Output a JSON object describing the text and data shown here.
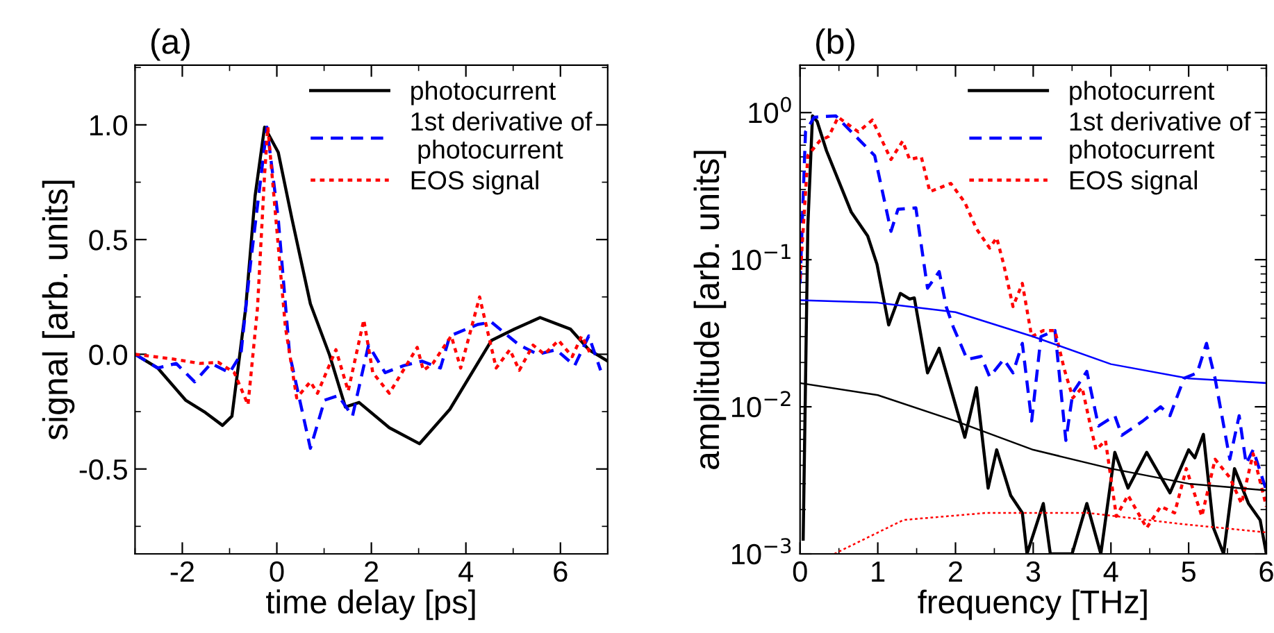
{
  "chart_data": [
    {
      "type": "line",
      "title": "(a)",
      "xlabel": "time delay [ps]",
      "ylabel": "signal [arb. units]",
      "xlim": [
        -3,
        7
      ],
      "ylim": [
        -0.87,
        1.26
      ],
      "xticks": [
        -2,
        0,
        2,
        4,
        6
      ],
      "yticks": [
        {
          "value": -0.5,
          "label": "-0.5"
        },
        {
          "value": 0.0,
          "label": "0.0"
        },
        {
          "value": 0.5,
          "label": "0.5"
        },
        {
          "value": 1.0,
          "label": "1.0"
        }
      ],
      "legend": "top right",
      "series": [
        {
          "name": "photocurrent",
          "color": "#000000",
          "line_style": "solid",
          "x": [
            -3,
            -2.52,
            -1.93,
            -1.54,
            -1.15,
            -0.95,
            -0.66,
            -0.46,
            -0.26,
            0.03,
            0.32,
            0.71,
            1.11,
            1.45,
            1.74,
            2.38,
            3.02,
            3.66,
            4.54,
            5.03,
            5.57,
            6.21,
            6.6,
            7
          ],
          "values": [
            0,
            -0.06,
            -0.2,
            -0.25,
            -0.31,
            -0.27,
            0.2,
            0.69,
            0.99,
            0.88,
            0.59,
            0.22,
            0,
            -0.23,
            -0.21,
            -0.32,
            -0.39,
            -0.24,
            0.06,
            0.11,
            0.16,
            0.11,
            0.02,
            -0.03
          ]
        },
        {
          "name": "1st derivative of\n photocurrent",
          "color": "#0000ff",
          "line_style": "dashed",
          "x": [
            -3,
            -2.52,
            -2.13,
            -1.74,
            -1.39,
            -1.0,
            -0.76,
            -0.56,
            -0.21,
            0.03,
            0.27,
            0.71,
            1.01,
            1.3,
            1.6,
            1.94,
            2.29,
            2.68,
            3.07,
            3.46,
            3.66,
            4.25,
            4.54,
            5.13,
            5.52,
            5.91,
            6.3,
            6.6,
            6.85
          ],
          "values": [
            0,
            -0.06,
            -0.04,
            -0.12,
            -0.04,
            -0.08,
            0,
            0.39,
            0.99,
            0.59,
            0,
            -0.41,
            -0.2,
            -0.18,
            -0.27,
            0.04,
            -0.08,
            -0.05,
            -0.03,
            -0.06,
            0.08,
            0.13,
            0.14,
            0.04,
            0,
            0.02,
            -0.05,
            0.08,
            -0.07
          ]
        },
        {
          "name": "EOS signal",
          "color": "#ff0000",
          "line_style": "dotted",
          "x": [
            -3,
            -2.22,
            -1.63,
            -1.24,
            -0.9,
            -0.61,
            -0.41,
            -0.26,
            -0.19,
            -0.02,
            0.18,
            0.42,
            0.71,
            0.86,
            1.25,
            1.51,
            1.84,
            2.03,
            2.38,
            2.97,
            3.1,
            3.3,
            3.69,
            3.89,
            4.29,
            4.64,
            4.93,
            5.13,
            5.42,
            5.66,
            5.96,
            6.25,
            6.45,
            6.64
          ],
          "values": [
            0,
            -0.02,
            -0.04,
            -0.035,
            -0.08,
            -0.22,
            0.2,
            0.78,
            0.99,
            0.59,
            0.12,
            -0.19,
            -0.12,
            -0.17,
            0.02,
            -0.16,
            0.15,
            -0.08,
            -0.17,
            0.03,
            -0.07,
            -0.04,
            0.08,
            -0.06,
            0.25,
            -0.06,
            0.02,
            -0.07,
            0.04,
            0,
            0.06,
            -0.01,
            0.08,
            0
          ]
        }
      ]
    },
    {
      "type": "line",
      "title": "(b)",
      "xlabel": "frequency [THz]",
      "ylabel": "amplitude [arb. units]",
      "log": "y",
      "xlim": [
        0,
        6
      ],
      "ylim": [
        0.001,
        2.1
      ],
      "xticks": [
        0,
        1,
        2,
        3,
        4,
        5,
        6
      ],
      "yticks": [
        {
          "value": 0.001,
          "label": "10$^{−3}$"
        },
        {
          "value": 0.01,
          "label": "10$^{−2}$"
        },
        {
          "value": 0.1,
          "label": "10$^{−1}$"
        },
        {
          "value": 1,
          "label": "10$^{0}$"
        }
      ],
      "legend": "top right",
      "series": [
        {
          "name": "photocurrent",
          "color": "#000000",
          "line_style": "solid",
          "x": [
            0.04,
            0.1,
            0.16,
            0.22,
            0.34,
            0.49,
            0.66,
            0.87,
            0.99,
            1.14,
            1.29,
            1.41,
            1.47,
            1.64,
            1.79,
            2.12,
            2.27,
            2.42,
            2.53,
            2.71,
            2.86,
            2.92,
            3.13,
            3.22,
            3.5,
            3.69,
            3.87,
            4.05,
            4.22,
            4.46,
            4.76,
            5.0,
            5.08,
            5.19,
            5.32,
            5.45,
            5.59,
            5.77,
            5.92,
            6.0
          ],
          "values": [
            0.00126,
            0.17,
            0.95,
            0.87,
            0.55,
            0.35,
            0.21,
            0.145,
            0.093,
            0.036,
            0.059,
            0.054,
            0.055,
            0.017,
            0.025,
            0.0062,
            0.0135,
            0.0028,
            0.0051,
            0.0025,
            0.0019,
            0.001,
            0.0022,
            0.001,
            0.001,
            0.0022,
            0.001,
            0.0049,
            0.0028,
            0.0049,
            0.0026,
            0.0051,
            0.0045,
            0.0065,
            0.0015,
            0.001,
            0.0038,
            0.0022,
            0.0017,
            0.001
          ]
        },
        {
          "name": "1st derivative of\nphotocurrent",
          "color": "#0000ff",
          "line_style": "dashed",
          "x": [
            0,
            0.07,
            0.18,
            0.46,
            0.66,
            0.96,
            1.17,
            1.26,
            1.49,
            1.64,
            1.79,
            1.88,
            1.97,
            2.15,
            2.33,
            2.44,
            2.62,
            2.74,
            2.86,
            2.98,
            3.1,
            3.28,
            3.42,
            3.51,
            3.69,
            3.84,
            4.05,
            4.14,
            4.41,
            4.64,
            4.76,
            4.94,
            5.11,
            5.23,
            5.34,
            5.53,
            5.65,
            5.74,
            5.83,
            6.0
          ],
          "values": [
            0.069,
            0.74,
            0.93,
            0.95,
            0.74,
            0.51,
            0.156,
            0.22,
            0.225,
            0.064,
            0.083,
            0.048,
            0.035,
            0.021,
            0.022,
            0.016,
            0.021,
            0.017,
            0.027,
            0.008,
            0.03,
            0.033,
            0.0059,
            0.0125,
            0.0174,
            0.0074,
            0.0087,
            0.0064,
            0.008,
            0.01,
            0.0087,
            0.0156,
            0.017,
            0.027,
            0.0156,
            0.0044,
            0.0087,
            0.0041,
            0.0051,
            0.0027
          ]
        },
        {
          "name": "EOS signal",
          "color": "#ff0000",
          "line_style": "dotted",
          "x": [
            0,
            0.1,
            0.25,
            0.37,
            0.49,
            0.75,
            0.93,
            1.17,
            1.32,
            1.41,
            1.56,
            1.67,
            1.94,
            2.12,
            2.27,
            2.44,
            2.53,
            2.62,
            2.74,
            2.86,
            2.98,
            3.13,
            3.28,
            3.4,
            3.51,
            3.63,
            3.75,
            3.81,
            3.93,
            4.07,
            4.22,
            4.46,
            4.64,
            4.82,
            4.97,
            5.17,
            5.34,
            5.53,
            5.68,
            5.83,
            6.0
          ],
          "values": [
            0.074,
            0.51,
            0.64,
            0.69,
            0.93,
            0.74,
            0.89,
            0.48,
            0.64,
            0.48,
            0.5,
            0.29,
            0.33,
            0.245,
            0.162,
            0.12,
            0.141,
            0.093,
            0.048,
            0.069,
            0.03,
            0.033,
            0.033,
            0.018,
            0.0115,
            0.0135,
            0.0069,
            0.0051,
            0.0059,
            0.0018,
            0.0025,
            0.0015,
            0.0021,
            0.0019,
            0.0038,
            0.0018,
            0.0044,
            0.0033,
            0.0022,
            0.0048,
            0.0021
          ]
        },
        {
          "type": "line",
          "color": "#0000ff",
          "line_style": "solid",
          "x": [
            0,
            1,
            2,
            3,
            4,
            5,
            6
          ],
          "values": [
            0.053,
            0.051,
            0.044,
            0.03,
            0.0195,
            0.0156,
            0.0145
          ]
        },
        {
          "type": "line",
          "color": "#000000",
          "line_style": "solid",
          "x": [
            0,
            1,
            2,
            3,
            4,
            5,
            6
          ],
          "values": [
            0.0145,
            0.012,
            0.008,
            0.0051,
            0.0038,
            0.003,
            0.0027
          ]
        },
        {
          "type": "line",
          "color": "#ff0000",
          "line_style": "dotted",
          "x": [
            0.44,
            1.33,
            2.4,
            3.7,
            4.89,
            6.0
          ],
          "values": [
            0.001,
            0.0017,
            0.0019,
            0.0019,
            0.0016,
            0.0014
          ]
        }
      ]
    }
  ]
}
